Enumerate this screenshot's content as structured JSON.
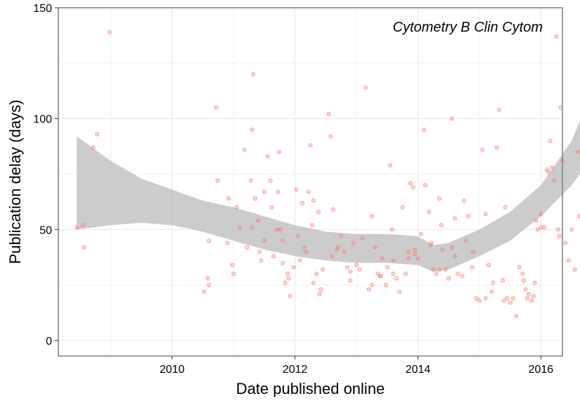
{
  "chart_data": {
    "type": "scatter",
    "title": "",
    "annotation": "Cytometry B Clin Cytom",
    "xlabel": "Date published online",
    "ylabel": "Publication delay (days)",
    "xlim": [
      2008.15,
      2016.35
    ],
    "ylim": [
      -7,
      150
    ],
    "x_ticks": [
      2010,
      2012,
      2014,
      2016
    ],
    "y_ticks": [
      0,
      50,
      100,
      150
    ],
    "grid": true,
    "colors": {
      "points": "#f8766d",
      "band": "#bfbfbf",
      "grid": "#ebebeb",
      "panel_border": "#7f7f7f"
    },
    "points": [
      [
        2008.45,
        51
      ],
      [
        2008.55,
        52
      ],
      [
        2008.57,
        42
      ],
      [
        2008.72,
        87
      ],
      [
        2008.78,
        93
      ],
      [
        2008.98,
        139
      ],
      [
        2010.52,
        22
      ],
      [
        2010.58,
        28
      ],
      [
        2010.6,
        25
      ],
      [
        2010.6,
        45
      ],
      [
        2010.72,
        105
      ],
      [
        2010.74,
        72
      ],
      [
        2010.92,
        64
      ],
      [
        2010.98,
        34
      ],
      [
        2011.0,
        30
      ],
      [
        2011.05,
        60
      ],
      [
        2011.1,
        51
      ],
      [
        2011.18,
        86
      ],
      [
        2011.22,
        42
      ],
      [
        2011.28,
        72
      ],
      [
        2011.3,
        95
      ],
      [
        2011.32,
        120
      ],
      [
        2011.35,
        64
      ],
      [
        2011.4,
        54
      ],
      [
        2011.42,
        40
      ],
      [
        2011.45,
        36
      ],
      [
        2011.5,
        45
      ],
      [
        2011.55,
        83
      ],
      [
        2011.6,
        72
      ],
      [
        2011.62,
        60
      ],
      [
        2011.65,
        38
      ],
      [
        2011.7,
        50
      ],
      [
        2011.72,
        67
      ],
      [
        2011.74,
        85
      ],
      [
        2011.76,
        50
      ],
      [
        2011.8,
        35
      ],
      [
        2011.84,
        26
      ],
      [
        2011.88,
        30
      ],
      [
        2011.9,
        28
      ],
      [
        2011.92,
        20
      ],
      [
        2011.98,
        33
      ],
      [
        2012.02,
        68
      ],
      [
        2012.05,
        47
      ],
      [
        2012.08,
        36
      ],
      [
        2012.12,
        62
      ],
      [
        2012.15,
        42
      ],
      [
        2012.18,
        40
      ],
      [
        2012.22,
        67
      ],
      [
        2012.25,
        88
      ],
      [
        2012.28,
        52
      ],
      [
        2012.3,
        63
      ],
      [
        2012.35,
        30
      ],
      [
        2012.38,
        58
      ],
      [
        2012.4,
        21
      ],
      [
        2012.42,
        23
      ],
      [
        2012.45,
        32
      ],
      [
        2012.55,
        102
      ],
      [
        2012.58,
        92
      ],
      [
        2012.62,
        59
      ],
      [
        2012.68,
        41
      ],
      [
        2012.7,
        42
      ],
      [
        2012.75,
        47
      ],
      [
        2012.8,
        40
      ],
      [
        2012.85,
        33
      ],
      [
        2012.9,
        27
      ],
      [
        2012.95,
        44
      ],
      [
        2013.05,
        32
      ],
      [
        2013.1,
        46
      ],
      [
        2013.15,
        114
      ],
      [
        2013.2,
        23
      ],
      [
        2013.25,
        56
      ],
      [
        2013.3,
        42
      ],
      [
        2013.35,
        30
      ],
      [
        2013.38,
        29
      ],
      [
        2013.42,
        37
      ],
      [
        2013.48,
        25
      ],
      [
        2013.5,
        33
      ],
      [
        2013.55,
        79
      ],
      [
        2013.58,
        50
      ],
      [
        2013.6,
        36
      ],
      [
        2013.65,
        28
      ],
      [
        2013.7,
        22
      ],
      [
        2013.75,
        60
      ],
      [
        2013.8,
        30
      ],
      [
        2013.85,
        40
      ],
      [
        2013.88,
        71
      ],
      [
        2013.92,
        69
      ],
      [
        2013.95,
        41
      ],
      [
        2014.0,
        37
      ],
      [
        2014.05,
        48
      ],
      [
        2014.1,
        95
      ],
      [
        2014.12,
        70
      ],
      [
        2014.18,
        58
      ],
      [
        2014.22,
        44
      ],
      [
        2014.25,
        32
      ],
      [
        2014.3,
        30
      ],
      [
        2014.35,
        64
      ],
      [
        2014.38,
        52
      ],
      [
        2014.4,
        41
      ],
      [
        2014.45,
        32
      ],
      [
        2014.5,
        28
      ],
      [
        2014.55,
        100
      ],
      [
        2014.6,
        55
      ],
      [
        2014.65,
        30
      ],
      [
        2014.72,
        29
      ],
      [
        2014.78,
        45
      ],
      [
        2014.82,
        56
      ],
      [
        2014.88,
        33
      ],
      [
        2014.9,
        40
      ],
      [
        2014.95,
        19
      ],
      [
        2015.0,
        18
      ],
      [
        2015.05,
        86
      ],
      [
        2015.1,
        57
      ],
      [
        2015.15,
        34
      ],
      [
        2015.2,
        22
      ],
      [
        2015.22,
        26
      ],
      [
        2015.28,
        87
      ],
      [
        2015.32,
        104
      ],
      [
        2015.38,
        27
      ],
      [
        2015.42,
        60
      ],
      [
        2015.5,
        17
      ],
      [
        2015.55,
        19
      ],
      [
        2015.6,
        11
      ],
      [
        2015.65,
        33
      ],
      [
        2015.7,
        30
      ],
      [
        2015.72,
        27
      ],
      [
        2015.75,
        23
      ],
      [
        2015.78,
        19
      ],
      [
        2015.8,
        21
      ],
      [
        2015.85,
        18
      ],
      [
        2015.88,
        20
      ],
      [
        2015.92,
        54
      ],
      [
        2015.95,
        50
      ],
      [
        2016.0,
        57
      ],
      [
        2016.05,
        51
      ],
      [
        2016.1,
        77
      ],
      [
        2016.12,
        76
      ],
      [
        2016.15,
        90
      ],
      [
        2016.18,
        78
      ],
      [
        2016.22,
        72
      ],
      [
        2016.25,
        137
      ],
      [
        2016.28,
        50
      ],
      [
        2016.32,
        105
      ],
      [
        2016.35,
        81
      ],
      [
        2016.4,
        44
      ],
      [
        2016.45,
        36
      ],
      [
        2016.5,
        50
      ],
      [
        2016.55,
        32
      ],
      [
        2016.6,
        85
      ],
      [
        2016.62,
        56
      ],
      [
        2015.4,
        18
      ],
      [
        2015.45,
        19
      ],
      [
        2015.1,
        19
      ],
      [
        2016.0,
        51
      ],
      [
        2015.9,
        26
      ],
      [
        2014.75,
        63
      ],
      [
        2014.6,
        38
      ],
      [
        2014.2,
        43
      ],
      [
        2013.95,
        39
      ],
      [
        2013.4,
        29
      ],
      [
        2013.0,
        34
      ],
      [
        2012.6,
        38
      ],
      [
        2012.3,
        26
      ],
      [
        2011.8,
        45
      ],
      [
        2011.5,
        67
      ],
      [
        2011.3,
        51
      ],
      [
        2010.9,
        44
      ],
      [
        2016.3,
        47
      ],
      [
        2014.55,
        42
      ],
      [
        2014.35,
        32
      ],
      [
        2013.85,
        37
      ],
      [
        2013.6,
        30
      ],
      [
        2013.25,
        25
      ],
      [
        2012.9,
        31
      ]
    ],
    "ci_band": {
      "x": [
        2008.45,
        2009.0,
        2009.5,
        2010.0,
        2010.5,
        2011.0,
        2011.5,
        2012.0,
        2012.5,
        2013.0,
        2013.5,
        2014.0,
        2014.25,
        2014.5,
        2015.0,
        2015.5,
        2016.0,
        2016.5,
        2016.95
      ],
      "lower": [
        50,
        52,
        53,
        52,
        49,
        45,
        41,
        38,
        36,
        35,
        35,
        34,
        31,
        32,
        38,
        45,
        56,
        70,
        87
      ],
      "upper": [
        92,
        81,
        73,
        68,
        63,
        60,
        56,
        52,
        49,
        48,
        48,
        47,
        43,
        44,
        50,
        58,
        70,
        90,
        120
      ]
    }
  }
}
